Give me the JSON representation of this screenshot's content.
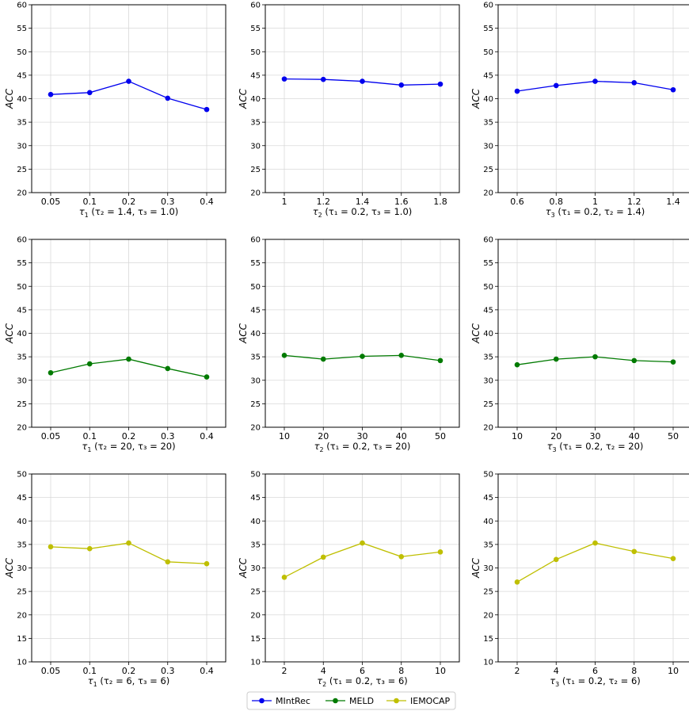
{
  "colors": {
    "MIntRec": "#0000ee",
    "MELD": "#007a00",
    "IEMOCAP": "#bfbf00",
    "grid": "#d9d9d9"
  },
  "legend": {
    "placement": "bottom-center",
    "entries": [
      {
        "name": "MIntRec",
        "color": "#0000ee"
      },
      {
        "name": "MELD",
        "color": "#007a00"
      },
      {
        "name": "IEMOCAP",
        "color": "#bfbf00"
      }
    ]
  },
  "chart_data": [
    {
      "type": "line",
      "series": [
        {
          "name": "MIntRec",
          "values": [
            40.9,
            41.3,
            43.7,
            40.1,
            37.7
          ]
        }
      ],
      "categories": [
        "0.05",
        "0.1",
        "0.2",
        "0.3",
        "0.4"
      ],
      "xlabel_symbol": "τ",
      "xlabel_sub": "1",
      "xlabel_rest": " (τ₂ = 1.4, τ₃ = 1.0)",
      "ylabel": "ACC",
      "ylim": [
        20,
        60
      ],
      "yticks": [
        20,
        25,
        30,
        35,
        40,
        45,
        50,
        55,
        60
      ],
      "grid": true
    },
    {
      "type": "line",
      "series": [
        {
          "name": "MIntRec",
          "values": [
            44.2,
            44.1,
            43.7,
            42.9,
            43.1
          ]
        }
      ],
      "categories": [
        "1",
        "1.2",
        "1.4",
        "1.6",
        "1.8"
      ],
      "xlabel_symbol": "τ",
      "xlabel_sub": "2",
      "xlabel_rest": " (τ₁ = 0.2, τ₃ = 1.0)",
      "ylabel": "ACC",
      "ylim": [
        20,
        60
      ],
      "yticks": [
        20,
        25,
        30,
        35,
        40,
        45,
        50,
        55,
        60
      ],
      "grid": true
    },
    {
      "type": "line",
      "series": [
        {
          "name": "MIntRec",
          "values": [
            41.6,
            42.8,
            43.7,
            43.4,
            41.9
          ]
        }
      ],
      "categories": [
        "0.6",
        "0.8",
        "1",
        "1.2",
        "1.4"
      ],
      "xlabel_symbol": "τ",
      "xlabel_sub": "3",
      "xlabel_rest": " (τ₁ = 0.2, τ₂ = 1.4)",
      "ylabel": "ACC",
      "ylim": [
        20,
        60
      ],
      "yticks": [
        20,
        25,
        30,
        35,
        40,
        45,
        50,
        55,
        60
      ],
      "grid": true
    },
    {
      "type": "line",
      "series": [
        {
          "name": "MELD",
          "values": [
            31.6,
            33.5,
            34.5,
            32.5,
            30.7
          ]
        }
      ],
      "categories": [
        "0.05",
        "0.1",
        "0.2",
        "0.3",
        "0.4"
      ],
      "xlabel_symbol": "τ",
      "xlabel_sub": "1",
      "xlabel_rest": " (τ₂ = 20, τ₃ = 20)",
      "ylabel": "ACC",
      "ylim": [
        20,
        60
      ],
      "yticks": [
        20,
        25,
        30,
        35,
        40,
        45,
        50,
        55,
        60
      ],
      "grid": true
    },
    {
      "type": "line",
      "series": [
        {
          "name": "MELD",
          "values": [
            35.3,
            34.5,
            35.1,
            35.3,
            34.2
          ]
        }
      ],
      "categories": [
        "10",
        "20",
        "30",
        "40",
        "50"
      ],
      "xlabel_symbol": "τ",
      "xlabel_sub": "2",
      "xlabel_rest": " (τ₁ = 0.2, τ₃ = 20)",
      "ylabel": "ACC",
      "ylim": [
        20,
        60
      ],
      "yticks": [
        20,
        25,
        30,
        35,
        40,
        45,
        50,
        55,
        60
      ],
      "grid": true
    },
    {
      "type": "line",
      "series": [
        {
          "name": "MELD",
          "values": [
            33.3,
            34.5,
            35.0,
            34.2,
            33.9
          ]
        }
      ],
      "categories": [
        "10",
        "20",
        "30",
        "40",
        "50"
      ],
      "xlabel_symbol": "τ",
      "xlabel_sub": "3",
      "xlabel_rest": " (τ₁ = 0.2, τ₂ = 20)",
      "ylabel": "ACC",
      "ylim": [
        20,
        60
      ],
      "yticks": [
        20,
        25,
        30,
        35,
        40,
        45,
        50,
        55,
        60
      ],
      "grid": true
    },
    {
      "type": "line",
      "series": [
        {
          "name": "IEMOCAP",
          "values": [
            34.5,
            34.1,
            35.3,
            31.3,
            30.9
          ]
        }
      ],
      "categories": [
        "0.05",
        "0.1",
        "0.2",
        "0.3",
        "0.4"
      ],
      "xlabel_symbol": "τ",
      "xlabel_sub": "1",
      "xlabel_rest": " (τ₂ = 6, τ₃ = 6)",
      "ylabel": "ACC",
      "ylim": [
        10,
        50
      ],
      "yticks": [
        10,
        15,
        20,
        25,
        30,
        35,
        40,
        45,
        50
      ],
      "grid": true
    },
    {
      "type": "line",
      "series": [
        {
          "name": "IEMOCAP",
          "values": [
            28.0,
            32.3,
            35.3,
            32.4,
            33.4
          ]
        }
      ],
      "categories": [
        "2",
        "4",
        "6",
        "8",
        "10"
      ],
      "xlabel_symbol": "τ",
      "xlabel_sub": "2",
      "xlabel_rest": " (τ₁ = 0.2, τ₃ = 6)",
      "ylabel": "ACC",
      "ylim": [
        10,
        50
      ],
      "yticks": [
        10,
        15,
        20,
        25,
        30,
        35,
        40,
        45,
        50
      ],
      "grid": true
    },
    {
      "type": "line",
      "series": [
        {
          "name": "IEMOCAP",
          "values": [
            27.0,
            31.8,
            35.3,
            33.5,
            32.0
          ]
        }
      ],
      "categories": [
        "2",
        "4",
        "6",
        "8",
        "10"
      ],
      "xlabel_symbol": "τ",
      "xlabel_sub": "3",
      "xlabel_rest": " (τ₁ = 0.2, τ₂ = 6)",
      "ylabel": "ACC",
      "ylim": [
        10,
        50
      ],
      "yticks": [
        10,
        15,
        20,
        25,
        30,
        35,
        40,
        45,
        50
      ],
      "grid": true
    }
  ]
}
